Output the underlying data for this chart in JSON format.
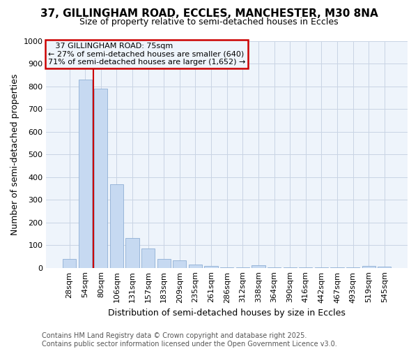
{
  "title_line1": "37, GILLINGHAM ROAD, ECCLES, MANCHESTER, M30 8NA",
  "title_line2": "Size of property relative to semi-detached houses in Eccles",
  "xlabel": "Distribution of semi-detached houses by size in Eccles",
  "ylabel": "Number of semi-detached properties",
  "categories": [
    "28sqm",
    "54sqm",
    "80sqm",
    "106sqm",
    "131sqm",
    "157sqm",
    "183sqm",
    "209sqm",
    "235sqm",
    "261sqm",
    "286sqm",
    "312sqm",
    "338sqm",
    "364sqm",
    "390sqm",
    "416sqm",
    "442sqm",
    "467sqm",
    "493sqm",
    "519sqm",
    "545sqm"
  ],
  "values": [
    38,
    830,
    790,
    370,
    130,
    85,
    38,
    32,
    13,
    7,
    2,
    2,
    10,
    2,
    2,
    1,
    1,
    1,
    1,
    8,
    5
  ],
  "bar_color": "#c6d9f1",
  "bar_edge_color": "#8eaed4",
  "subject_line_color": "#cc0000",
  "annotation_box_color": "#cc0000",
  "background_color": "#ffffff",
  "chart_bg_color": "#eef4fb",
  "grid_color": "#c8d4e4",
  "footer_line1": "Contains HM Land Registry data © Crown copyright and database right 2025.",
  "footer_line2": "Contains public sector information licensed under the Open Government Licence v3.0.",
  "subject_label": "37 GILLINGHAM ROAD: 75sqm",
  "smaller_pct": "27%",
  "smaller_n": "640",
  "larger_pct": "71%",
  "larger_n": "1,652",
  "ylim": [
    0,
    1000
  ],
  "yticks": [
    0,
    100,
    200,
    300,
    400,
    500,
    600,
    700,
    800,
    900,
    1000
  ],
  "subject_bar_index": 1,
  "title_fontsize": 11,
  "subtitle_fontsize": 9,
  "ylabel_fontsize": 9,
  "xlabel_fontsize": 9,
  "tick_fontsize": 8,
  "annot_fontsize": 8,
  "footer_fontsize": 7
}
